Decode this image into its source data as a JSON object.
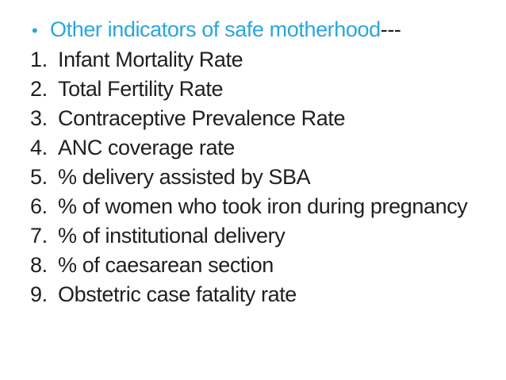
{
  "slide": {
    "heading": {
      "bullet_char": "•",
      "text": "Other indicators of safe motherhood",
      "suffix": "---"
    },
    "items": [
      {
        "num": "1.",
        "text": "Infant Mortality Rate"
      },
      {
        "num": "2.",
        "text": "Total Fertility Rate"
      },
      {
        "num": "3.",
        "text": "Contraceptive Prevalence Rate"
      },
      {
        "num": "4.",
        "text": "ANC coverage rate"
      },
      {
        "num": "5.",
        "text": "% delivery assisted by SBA"
      },
      {
        "num": "6.",
        "text": "% of women who took iron during pregnancy"
      },
      {
        "num": "7.",
        "text": "% of institutional delivery"
      },
      {
        "num": "8.",
        "text": "% of caesarean section"
      },
      {
        "num": "9.",
        "text": "Obstetric case fatality rate"
      }
    ],
    "colors": {
      "heading": "#2AA6DB",
      "body": "#1F1F1F",
      "background": "#FFFFFF"
    }
  }
}
